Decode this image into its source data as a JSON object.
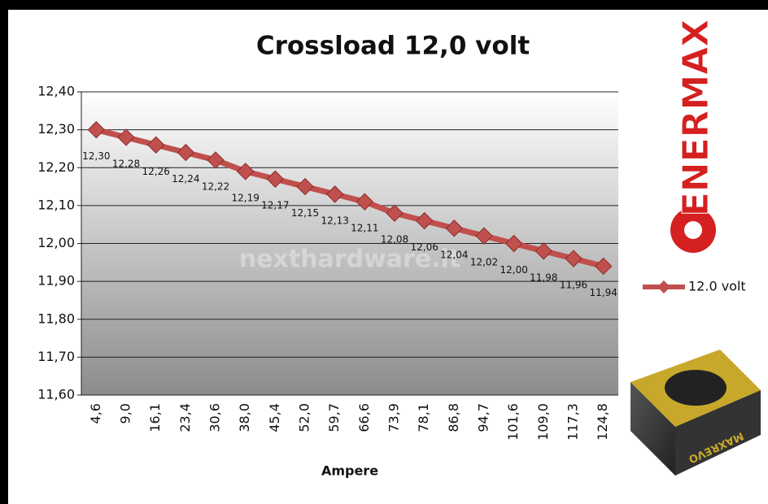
{
  "chart_data": {
    "type": "line",
    "title": "Crossload 12,0 volt",
    "x_label": "Ampere",
    "watermark": "nexthardware.it",
    "brand": "ENERMAX",
    "product_label": "MAXREVO",
    "categories": [
      "4,6",
      "9,0",
      "16,1",
      "23,4",
      "30,6",
      "38,0",
      "45,4",
      "52,0",
      "59,7",
      "66,6",
      "73,9",
      "78,1",
      "86,8",
      "94,7",
      "101,6",
      "109,0",
      "117,3",
      "124,8"
    ],
    "series": [
      {
        "name": "12.0 volt",
        "color": "#c0504d",
        "values": [
          12.3,
          12.28,
          12.26,
          12.24,
          12.22,
          12.19,
          12.17,
          12.15,
          12.13,
          12.11,
          12.08,
          12.06,
          12.04,
          12.02,
          12.0,
          11.98,
          11.96,
          11.94
        ],
        "value_labels": [
          "12,30",
          "12,28",
          "12,26",
          "12,24",
          "12,22",
          "12,19",
          "12,17",
          "12,15",
          "12,13",
          "12,11",
          "12,08",
          "12,06",
          "12,04",
          "12,02",
          "12,00",
          "11,98",
          "11,96",
          "11,94"
        ]
      }
    ],
    "ylim": [
      11.6,
      12.4
    ],
    "yticks": [
      {
        "value": 11.6,
        "label": "11,60"
      },
      {
        "value": 11.7,
        "label": "11,70"
      },
      {
        "value": 11.8,
        "label": "11,80"
      },
      {
        "value": 11.9,
        "label": "11,90"
      },
      {
        "value": 12.0,
        "label": "12,00"
      },
      {
        "value": 12.1,
        "label": "12,10"
      },
      {
        "value": 12.2,
        "label": "12,20"
      },
      {
        "value": 12.3,
        "label": "12,30"
      },
      {
        "value": 12.4,
        "label": "12,40"
      }
    ],
    "grid": true,
    "legend": "right"
  }
}
